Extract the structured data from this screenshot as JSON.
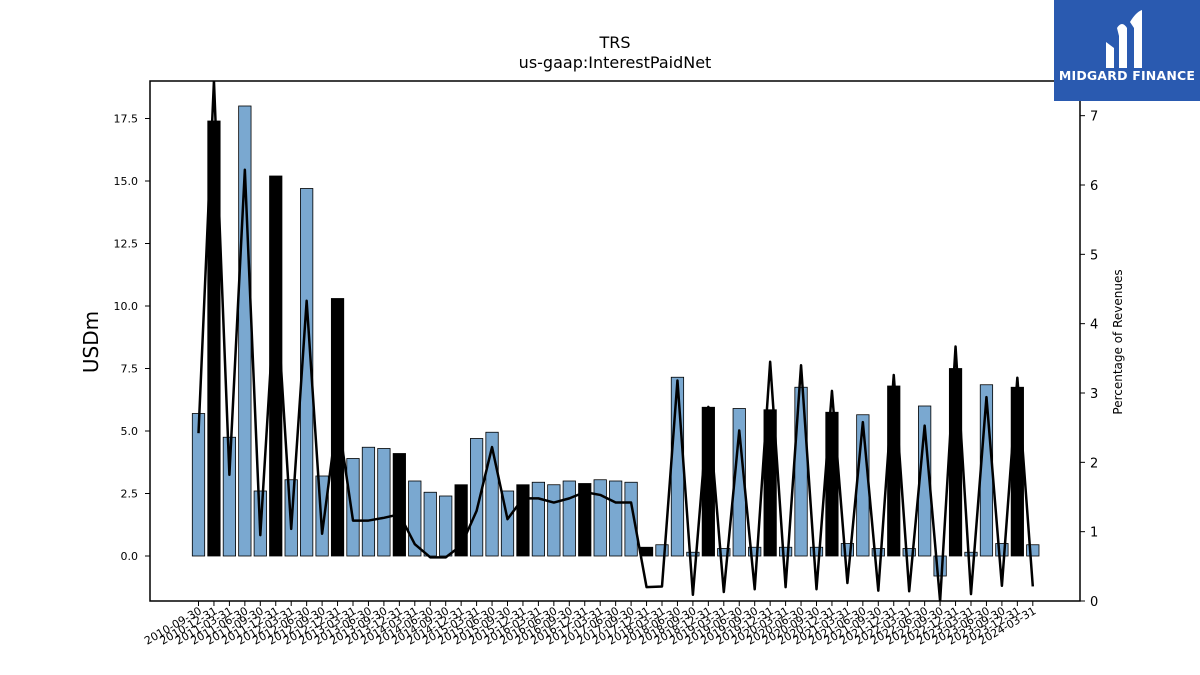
{
  "chart_data": {
    "type": "bar",
    "title": "TRS",
    "subtitle": "us-gaap:InterestPaidNet",
    "ylabel": "USDm",
    "y2label": "Percentage of Revenues",
    "ylim": [
      -1.8,
      19.0
    ],
    "y2lim": [
      0,
      7.5
    ],
    "yticks": [
      "0.0",
      "2.5",
      "5.0",
      "7.5",
      "10.0",
      "12.5",
      "15.0",
      "17.5"
    ],
    "y2ticks": [
      "0",
      "1",
      "2",
      "3",
      "4",
      "5",
      "6",
      "7"
    ],
    "categories": [
      "2010-09-30",
      "2010-12-31",
      "2011-03-31",
      "2011-06-30",
      "2011-09-30",
      "2011-12-31",
      "2012-03-31",
      "2012-06-30",
      "2012-09-30",
      "2012-12-31",
      "2013-03-31",
      "2013-06-30",
      "2013-09-30",
      "2013-12-31",
      "2014-03-31",
      "2014-06-30",
      "2014-09-30",
      "2014-12-31",
      "2015-03-31",
      "2015-06-30",
      "2015-09-30",
      "2015-12-31",
      "2016-03-31",
      "2016-06-30",
      "2016-09-30",
      "2016-12-31",
      "2017-03-31",
      "2017-06-30",
      "2017-09-30",
      "2017-12-31",
      "2018-03-31",
      "2018-06-30",
      "2018-09-30",
      "2018-12-31",
      "2019-03-31",
      "2019-06-30",
      "2019-09-30",
      "2019-12-31",
      "2020-03-31",
      "2020-06-30",
      "2020-09-30",
      "2020-12-31",
      "2021-03-31",
      "2021-06-30",
      "2021-09-30",
      "2021-12-31",
      "2022-03-31",
      "2022-06-30",
      "2022-09-30",
      "2022-12-31",
      "2023-03-31",
      "2023-06-30",
      "2023-09-30",
      "2023-12-31",
      "2024-03-31"
    ],
    "xtick_labels": [
      "2010-09-30",
      "2010-12-31",
      "2011-03-31",
      "2011-06-30",
      "2011-09-30",
      "2011-12-31",
      "2012-03-31",
      "2012-06-30",
      "2012-09-30",
      "2012-12-31",
      "2013-03-31",
      "2013-06-30",
      "2013-09-30",
      "2013-12-31",
      "2014-03-31",
      "2014-06-30",
      "2014-09-30",
      "2014-12-31",
      "2015-03-31",
      "2015-06-30",
      "2015-09-30",
      "2015-12-31",
      "2016-03-31",
      "2016-06-30",
      "2016-09-30",
      "2016-12-31",
      "2017-03-31",
      "2017-06-30",
      "2017-09-30",
      "2017-12-31",
      "2018-03-31",
      "2018-06-30",
      "2018-09-30",
      "2018-12-31",
      "2019-03-31",
      "2019-06-30",
      "2019-09-30",
      "2019-12-31",
      "2020-03-31",
      "2020-06-30",
      "2020-09-30",
      "2020-12-31",
      "2021-03-31",
      "2021-06-30",
      "2021-09-30",
      "2021-12-31",
      "2022-03-31",
      "2022-06-30",
      "2022-09-30",
      "2022-12-31",
      "2023-03-31",
      "2023-06-30",
      "2023-09-30",
      "2023-12-31",
      "2024-03-31"
    ],
    "series": [
      {
        "kind": "bar",
        "axis": "left",
        "values": [
          5.7,
          17.4,
          4.75,
          18.0,
          2.6,
          15.2,
          3.05,
          14.7,
          3.2,
          10.3,
          3.9,
          4.35,
          4.3,
          4.1,
          3.0,
          2.55,
          2.4,
          2.85,
          4.7,
          4.95,
          2.6,
          2.85,
          2.95,
          2.85,
          3.0,
          2.9,
          3.05,
          3.0,
          2.95,
          0.35,
          0.45,
          7.15,
          0.15,
          5.95,
          0.3,
          5.9,
          0.35,
          5.85,
          0.35,
          6.75,
          0.35,
          5.75,
          0.5,
          5.65,
          0.3,
          6.8,
          0.3,
          6.0,
          -0.8,
          7.5,
          0.15,
          6.85,
          0.5,
          6.75,
          0.45
        ],
        "fill_flags": [
          0,
          1,
          0,
          0,
          0,
          1,
          0,
          0,
          0,
          1,
          0,
          0,
          0,
          1,
          0,
          0,
          0,
          1,
          0,
          0,
          0,
          1,
          0,
          0,
          0,
          1,
          0,
          0,
          0,
          1,
          0,
          0,
          0,
          1,
          0,
          0,
          0,
          1,
          0,
          0,
          0,
          1,
          0,
          0,
          0,
          1,
          0,
          0,
          0,
          1,
          0,
          0,
          0,
          1,
          0
        ]
      },
      {
        "kind": "line",
        "axis": "right",
        "values": [
          2.42,
          7.5,
          1.82,
          6.22,
          0.95,
          4.58,
          1.04,
          4.33,
          0.97,
          2.68,
          1.16,
          1.16,
          1.2,
          1.25,
          0.82,
          0.63,
          0.63,
          0.8,
          1.3,
          2.22,
          1.18,
          1.48,
          1.48,
          1.42,
          1.48,
          1.57,
          1.53,
          1.42,
          1.42,
          0.2,
          0.21,
          3.18,
          0.09,
          2.8,
          0.13,
          2.46,
          0.17,
          3.45,
          0.2,
          3.4,
          0.17,
          3.03,
          0.26,
          2.58,
          0.15,
          3.26,
          0.14,
          2.53,
          0.0,
          3.67,
          0.1,
          2.94,
          0.22,
          3.22,
          0.21
        ]
      }
    ],
    "colors": {
      "bar_light": "#7aa8d0",
      "bar_dark": "#000000",
      "line": "#000000",
      "edge": "#000000"
    },
    "grid": false
  },
  "logo": {
    "text": "MIDGARD FINANCE",
    "bg": "#2a5ab0"
  }
}
